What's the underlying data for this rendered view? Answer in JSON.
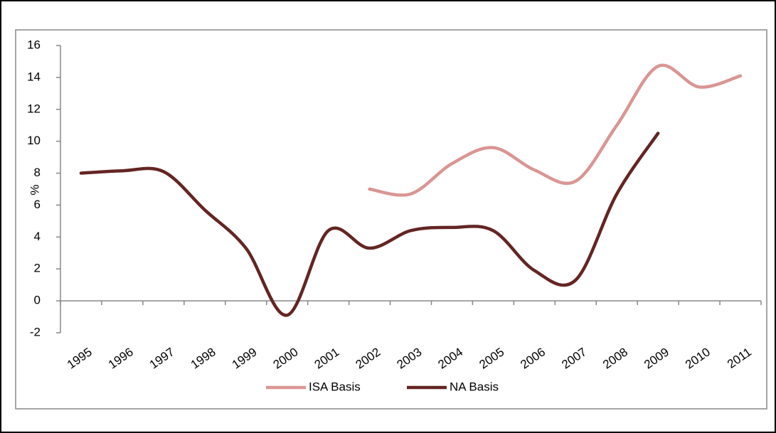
{
  "chart_data": {
    "type": "line",
    "y_label": "%",
    "categories": [
      "1995",
      "1996",
      "1997",
      "1998",
      "1999",
      "2000",
      "2001",
      "2002",
      "2003",
      "2004",
      "2005",
      "2006",
      "2007",
      "2008",
      "2009",
      "2010",
      "2011"
    ],
    "series": [
      {
        "name": "ISA Basis",
        "color": "#d99694",
        "values": [
          null,
          null,
          null,
          null,
          null,
          null,
          null,
          7.0,
          6.7,
          8.6,
          9.6,
          8.2,
          7.5,
          11.0,
          14.7,
          13.4,
          14.1
        ]
      },
      {
        "name": "NA Basis",
        "color": "#632523",
        "values": [
          8.0,
          8.15,
          8.1,
          5.7,
          3.3,
          -0.9,
          4.4,
          3.3,
          4.4,
          4.6,
          4.4,
          1.9,
          1.3,
          6.7,
          10.5,
          null,
          null
        ]
      }
    ],
    "ylim": [
      -2,
      16
    ],
    "yticks": [
      -2,
      0,
      2,
      4,
      6,
      8,
      10,
      12,
      14,
      16
    ],
    "legend": "bottom"
  }
}
